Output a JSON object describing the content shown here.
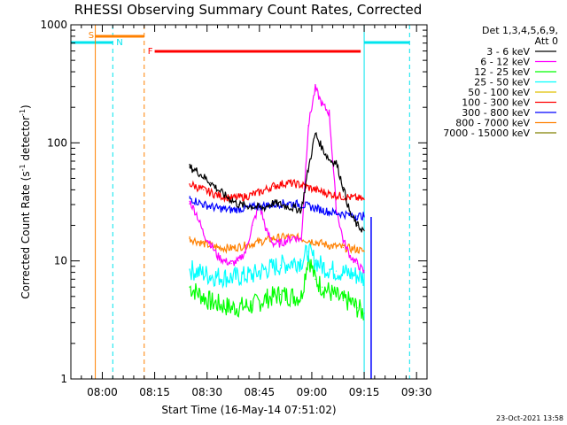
{
  "chart_data": {
    "type": "line",
    "title": "RHESSI Observing Summary Count Rates, Corrected",
    "xlabel": "Start Time (16-May-14 07:51:02)",
    "ylabel": "Corrected Count Rate (s^-1 detector^-1)",
    "ylabel_base": "Corrected Count Rate (s",
    "ylabel_sup1": "-1",
    "ylabel_mid": " detector",
    "ylabel_sup2": "-1",
    "ylabel_end": ")",
    "x_unit": "minutes after 07:51:02",
    "xlim": [
      0,
      102
    ],
    "ylim": [
      1,
      1000
    ],
    "yscale": "log",
    "xticks": [
      {
        "x": 9,
        "label": "08:00"
      },
      {
        "x": 24,
        "label": "08:15"
      },
      {
        "x": 39,
        "label": "08:30"
      },
      {
        "x": 54,
        "label": "08:45"
      },
      {
        "x": 69,
        "label": "09:00"
      },
      {
        "x": 84,
        "label": "09:15"
      },
      {
        "x": 99,
        "label": "09:30"
      }
    ],
    "yticks": [
      {
        "y": 1,
        "label": "1"
      },
      {
        "y": 10,
        "label": "10"
      },
      {
        "y": 100,
        "label": "100"
      },
      {
        "y": 1000,
        "label": "1000"
      }
    ],
    "legend_header": [
      "Det 1,3,4,5,6,9,",
      "Att 0"
    ],
    "legend_position": "right",
    "timestamp": "23-Oct-2021 13:58",
    "series": [
      {
        "name": "3 - 6 keV",
        "color": "#000000",
        "x": [
          34,
          36,
          40,
          44,
          48,
          52,
          55,
          58,
          62,
          66,
          68,
          70,
          72,
          74,
          76,
          78,
          80,
          82,
          84
        ],
        "y": [
          62,
          58,
          46,
          36,
          30,
          29,
          28,
          31,
          29,
          27,
          60,
          120,
          90,
          72,
          68,
          42,
          25,
          20,
          18
        ]
      },
      {
        "name": "6 - 12 keV",
        "color": "#ff00ff",
        "x": [
          34,
          36,
          38,
          40,
          42,
          44,
          46,
          48,
          50,
          52,
          54,
          56,
          58,
          60,
          62,
          64,
          66,
          68,
          70,
          72,
          74,
          76,
          78,
          80,
          82,
          84
        ],
        "y": [
          32,
          25,
          17,
          14,
          11,
          10,
          9.5,
          10,
          12,
          20,
          30,
          18,
          14,
          14,
          15,
          16,
          15,
          140,
          290,
          210,
          180,
          28,
          15,
          11,
          9.5,
          8
        ]
      },
      {
        "name": "12 - 25 keV",
        "color": "#00ff00",
        "x": [
          34,
          40,
          46,
          52,
          56,
          60,
          64,
          66,
          68,
          70,
          72,
          74,
          76,
          78,
          80,
          82,
          84
        ],
        "y": [
          6,
          4.5,
          4,
          4.2,
          4.8,
          5.2,
          5.0,
          5.0,
          11,
          7,
          6,
          5.5,
          5,
          4.6,
          4.5,
          4.0,
          3.6
        ]
      },
      {
        "name": "25 - 50 keV",
        "color": "#00ffff",
        "x": [
          34,
          40,
          46,
          52,
          56,
          60,
          64,
          66,
          68,
          70,
          72,
          74,
          76,
          78,
          80,
          82,
          84
        ],
        "y": [
          8.5,
          7.5,
          7.2,
          7.6,
          8.5,
          9.2,
          9.8,
          10.0,
          12,
          10,
          9,
          8.5,
          8.2,
          8.0,
          7.8,
          7.5,
          7.2
        ]
      },
      {
        "name": "50 - 100 keV",
        "color": "#e0c000",
        "x": [],
        "y": []
      },
      {
        "name": "100 - 300 keV",
        "color": "#ff0000",
        "x": [
          34,
          38,
          42,
          46,
          50,
          54,
          58,
          62,
          66,
          70,
          74,
          78,
          82,
          84
        ],
        "y": [
          45,
          40,
          36,
          34,
          35,
          38,
          43,
          46,
          44,
          40,
          37,
          35,
          34,
          33
        ]
      },
      {
        "name": "300 - 800 keV",
        "color": "#0000ff",
        "x": [
          34,
          38,
          42,
          46,
          50,
          54,
          58,
          62,
          66,
          70,
          74,
          78,
          82,
          84
        ],
        "y": [
          34,
          30,
          28,
          27,
          28,
          29,
          30,
          31,
          30,
          28,
          26,
          25,
          24,
          24
        ]
      },
      {
        "name": "800 - 7000 keV",
        "color": "#ff8000",
        "x": [
          34,
          38,
          42,
          46,
          50,
          54,
          58,
          62,
          66,
          70,
          74,
          78,
          82,
          84
        ],
        "y": [
          15.5,
          14,
          13,
          12.8,
          13.5,
          14.5,
          15.5,
          16,
          15.5,
          14.5,
          13.5,
          13,
          12.5,
          12
        ]
      },
      {
        "name": "7000 - 15000 keV",
        "color": "#808000",
        "x": [],
        "y": []
      }
    ],
    "annotations": {
      "cyan_top_bars": [
        {
          "x": [
            0,
            12
          ]
        },
        {
          "x": [
            84,
            97
          ]
        }
      ],
      "cyan_solid_vlines": [
        0,
        84
      ],
      "cyan_dashed_vlines": [
        12,
        97
      ],
      "n_label": {
        "text": "N",
        "x": 13
      },
      "orange_top_bar": {
        "x": [
          7,
          21
        ]
      },
      "orange_solid_vline": 7,
      "orange_dashed_vline": 21,
      "s_label": {
        "text": "S",
        "x": 5
      },
      "flare_bar": {
        "x": [
          24,
          83
        ]
      },
      "f_label": {
        "text": "F",
        "x": 22
      },
      "blue_solid_vline": 86,
      "red_vline": 86,
      "data_start": 34,
      "data_end": 86
    }
  }
}
